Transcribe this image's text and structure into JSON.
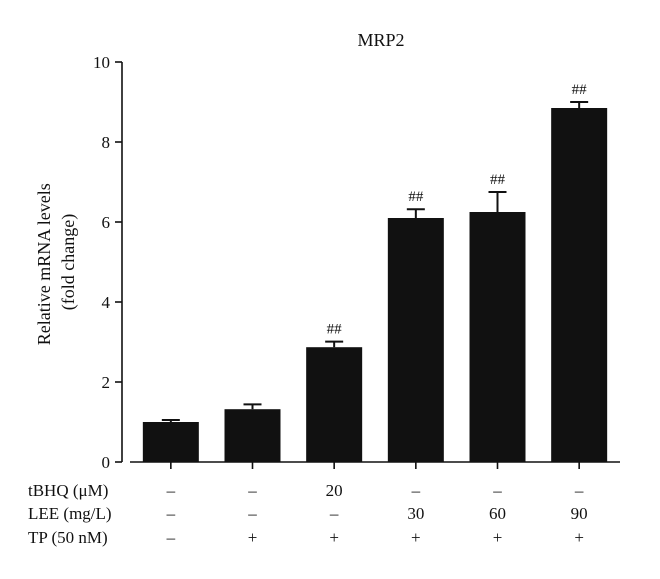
{
  "chart_data": {
    "type": "bar",
    "title": "MRP2",
    "ylabel_lines": [
      "Relative mRNA levels",
      "(fold change)"
    ],
    "ylim": [
      0,
      10
    ],
    "yticks": [
      0,
      2,
      4,
      6,
      8,
      10
    ],
    "bar_color": "#111111",
    "values": [
      1.0,
      1.32,
      2.87,
      6.1,
      6.25,
      8.85
    ],
    "errors": [
      0.05,
      0.12,
      0.14,
      0.22,
      0.5,
      0.15
    ],
    "annotations": [
      "",
      "",
      "##",
      "##",
      "##",
      "##"
    ],
    "treatment_rows": [
      {
        "label": "tBHQ (μM)",
        "values": [
          "–",
          "–",
          "20",
          "–",
          "–",
          "–"
        ]
      },
      {
        "label": "LEE (mg/L)",
        "values": [
          "–",
          "–",
          "–",
          "30",
          "60",
          "90"
        ]
      },
      {
        "label": "TP (50 nM)",
        "values": [
          "–",
          "+",
          "+",
          "+",
          "+",
          "+"
        ]
      }
    ]
  }
}
